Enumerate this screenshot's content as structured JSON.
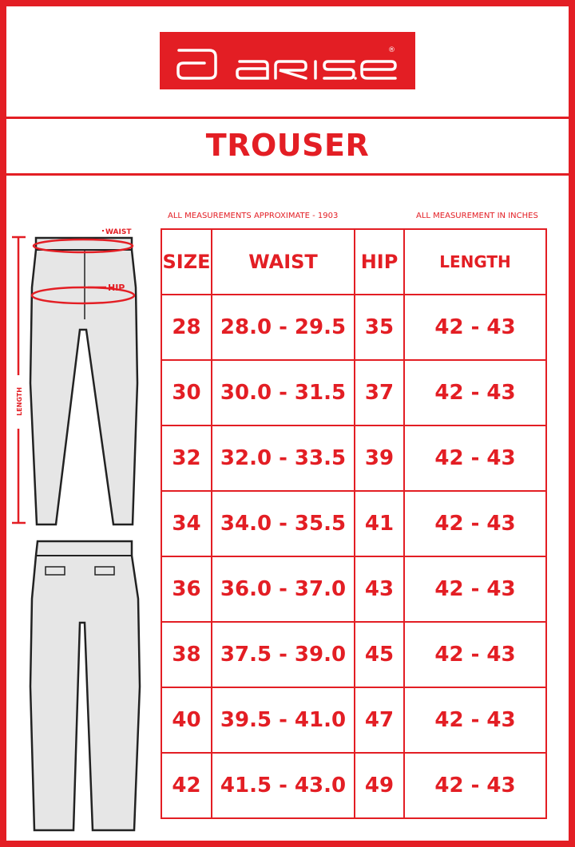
{
  "brand": {
    "name": "ariser",
    "registered_mark": "®"
  },
  "title": "TROUSER",
  "notes": {
    "left": "ALL MEASUREMENTS APPROXIMATE - 1903",
    "right": "ALL MEASUREMENT IN INCHES"
  },
  "diagram_labels": {
    "waist": "WAIST",
    "hip": "HIP",
    "length": "LENGTH"
  },
  "colors": {
    "accent": "#e31e24",
    "garment_fill": "#e6e6e6"
  },
  "table": {
    "headers": [
      "SIZE",
      "WAIST",
      "HIP",
      "LENGTH"
    ],
    "rows": [
      [
        "28",
        "28.0 - 29.5",
        "35",
        "42 - 43"
      ],
      [
        "30",
        "30.0 - 31.5",
        "37",
        "42 - 43"
      ],
      [
        "32",
        "32.0 - 33.5",
        "39",
        "42 - 43"
      ],
      [
        "34",
        "34.0 - 35.5",
        "41",
        "42 - 43"
      ],
      [
        "36",
        "36.0 - 37.0",
        "43",
        "42 - 43"
      ],
      [
        "38",
        "37.5 - 39.0",
        "45",
        "42 - 43"
      ],
      [
        "40",
        "39.5 - 41.0",
        "47",
        "42 - 43"
      ],
      [
        "42",
        "41.5 - 43.0",
        "49",
        "42 - 43"
      ]
    ]
  }
}
